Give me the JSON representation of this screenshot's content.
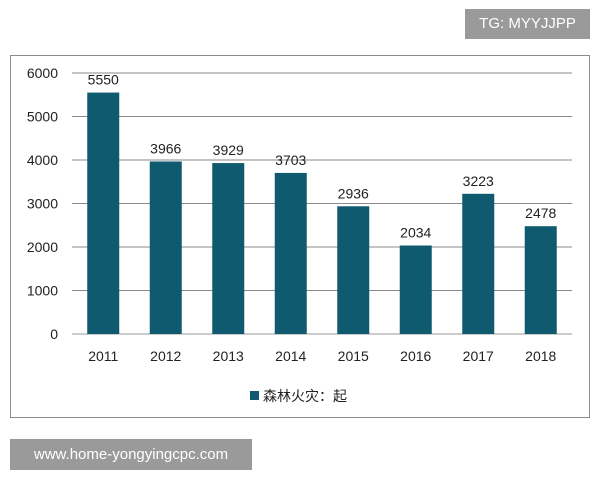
{
  "watermark": {
    "top": "TG: MYYJJPP",
    "bottom": "www.home-yongyingcpc.com"
  },
  "chart_data": {
    "type": "bar",
    "categories": [
      "2011",
      "2012",
      "2013",
      "2014",
      "2015",
      "2016",
      "2017",
      "2018"
    ],
    "series": [
      {
        "name": "森林火灾：起",
        "values": [
          5550,
          3966,
          3929,
          3703,
          2936,
          2034,
          3223,
          2478
        ],
        "color": "#0f5a6e"
      }
    ],
    "ylim": [
      0,
      6000
    ],
    "yticks": [
      0,
      1000,
      2000,
      3000,
      4000,
      5000,
      6000
    ],
    "grid": true,
    "legend_position": "bottom",
    "title": "",
    "xlabel": "",
    "ylabel": ""
  }
}
